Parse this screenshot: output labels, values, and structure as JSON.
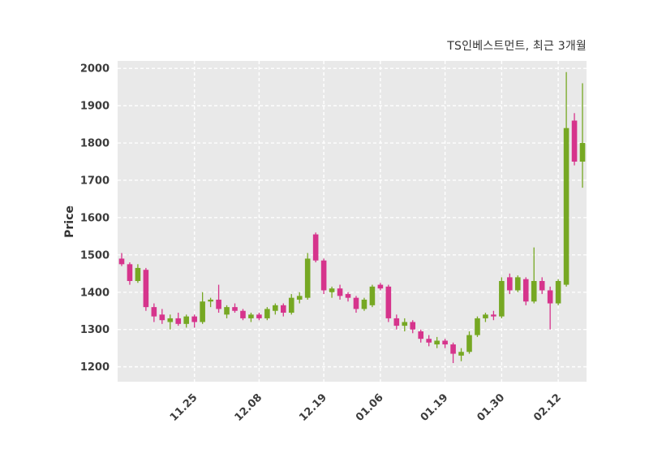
{
  "chart_data": {
    "type": "candlestick",
    "title": "TS인베스트먼트, 최근 3개월",
    "ylabel": "Price",
    "ylim": [
      1160,
      2020
    ],
    "yticks": [
      1200,
      1300,
      1400,
      1500,
      1600,
      1700,
      1800,
      1900,
      2000
    ],
    "xticks": [
      {
        "label": "11.25",
        "index": 9
      },
      {
        "label": "12.08",
        "index": 17
      },
      {
        "label": "12.19",
        "index": 25
      },
      {
        "label": "01.06",
        "index": 32
      },
      {
        "label": "01.19",
        "index": 40
      },
      {
        "label": "01.30",
        "index": 47
      },
      {
        "label": "02.12",
        "index": 54
      }
    ],
    "colors": {
      "up": "#76a823",
      "down": "#d6348c",
      "plot_bg": "#e9e9e9",
      "grid": "#ffffff",
      "text": "#3d3d3d",
      "title": "#333333"
    },
    "candles": [
      [
        1490,
        1505,
        1470,
        1475
      ],
      [
        1475,
        1480,
        1420,
        1430
      ],
      [
        1430,
        1475,
        1425,
        1465
      ],
      [
        1460,
        1465,
        1350,
        1360
      ],
      [
        1360,
        1370,
        1320,
        1335
      ],
      [
        1340,
        1355,
        1315,
        1325
      ],
      [
        1320,
        1340,
        1300,
        1330
      ],
      [
        1330,
        1345,
        1310,
        1315
      ],
      [
        1315,
        1340,
        1305,
        1335
      ],
      [
        1335,
        1340,
        1305,
        1320
      ],
      [
        1320,
        1400,
        1315,
        1375
      ],
      [
        1375,
        1385,
        1360,
        1380
      ],
      [
        1380,
        1420,
        1345,
        1355
      ],
      [
        1340,
        1365,
        1330,
        1360
      ],
      [
        1360,
        1370,
        1345,
        1350
      ],
      [
        1350,
        1355,
        1325,
        1330
      ],
      [
        1330,
        1345,
        1320,
        1340
      ],
      [
        1340,
        1345,
        1325,
        1330
      ],
      [
        1330,
        1360,
        1325,
        1355
      ],
      [
        1350,
        1370,
        1340,
        1365
      ],
      [
        1365,
        1370,
        1335,
        1345
      ],
      [
        1345,
        1395,
        1340,
        1385
      ],
      [
        1380,
        1400,
        1370,
        1390
      ],
      [
        1385,
        1505,
        1380,
        1490
      ],
      [
        1555,
        1560,
        1480,
        1485
      ],
      [
        1485,
        1490,
        1395,
        1405
      ],
      [
        1400,
        1415,
        1385,
        1410
      ],
      [
        1410,
        1420,
        1380,
        1390
      ],
      [
        1395,
        1400,
        1375,
        1385
      ],
      [
        1385,
        1390,
        1345,
        1355
      ],
      [
        1355,
        1385,
        1350,
        1380
      ],
      [
        1365,
        1420,
        1360,
        1415
      ],
      [
        1420,
        1425,
        1405,
        1410
      ],
      [
        1415,
        1420,
        1320,
        1330
      ],
      [
        1330,
        1340,
        1300,
        1310
      ],
      [
        1310,
        1330,
        1295,
        1320
      ],
      [
        1320,
        1325,
        1290,
        1300
      ],
      [
        1295,
        1300,
        1265,
        1275
      ],
      [
        1275,
        1285,
        1255,
        1265
      ],
      [
        1260,
        1280,
        1250,
        1270
      ],
      [
        1270,
        1275,
        1250,
        1260
      ],
      [
        1260,
        1265,
        1210,
        1235
      ],
      [
        1230,
        1250,
        1215,
        1240
      ],
      [
        1240,
        1295,
        1235,
        1285
      ],
      [
        1285,
        1335,
        1280,
        1330
      ],
      [
        1330,
        1345,
        1320,
        1340
      ],
      [
        1340,
        1350,
        1325,
        1335
      ],
      [
        1335,
        1440,
        1330,
        1430
      ],
      [
        1440,
        1450,
        1395,
        1405
      ],
      [
        1405,
        1445,
        1400,
        1440
      ],
      [
        1435,
        1440,
        1365,
        1375
      ],
      [
        1375,
        1520,
        1370,
        1430
      ],
      [
        1430,
        1440,
        1395,
        1405
      ],
      [
        1405,
        1415,
        1300,
        1370
      ],
      [
        1370,
        1435,
        1365,
        1430
      ],
      [
        1420,
        1990,
        1415,
        1840
      ],
      [
        1860,
        1880,
        1740,
        1750
      ],
      [
        1750,
        1960,
        1680,
        1800
      ]
    ]
  }
}
